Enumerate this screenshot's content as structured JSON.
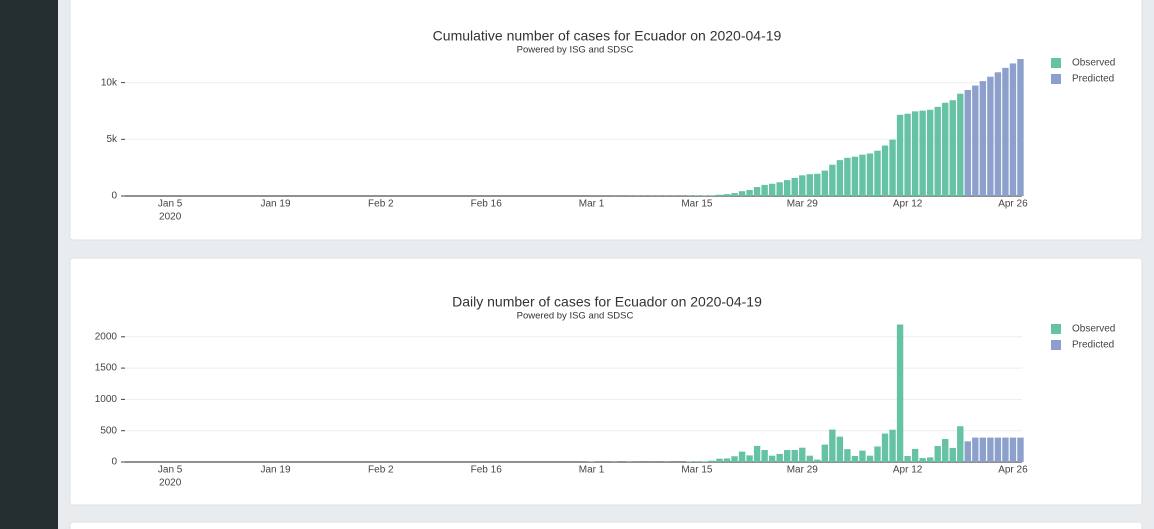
{
  "chart_data": [
    {
      "type": "bar",
      "title": "Cumulative number of cases for Ecuador on 2020-04-19",
      "subtitle": "Powered by ISG and SDSC",
      "x": [
        "2020-02-29",
        "2020-03-01",
        "2020-03-02",
        "2020-03-03",
        "2020-03-04",
        "2020-03-05",
        "2020-03-06",
        "2020-03-07",
        "2020-03-08",
        "2020-03-09",
        "2020-03-10",
        "2020-03-11",
        "2020-03-12",
        "2020-03-13",
        "2020-03-14",
        "2020-03-15",
        "2020-03-16",
        "2020-03-17",
        "2020-03-18",
        "2020-03-19",
        "2020-03-20",
        "2020-03-21",
        "2020-03-22",
        "2020-03-23",
        "2020-03-24",
        "2020-03-25",
        "2020-03-26",
        "2020-03-27",
        "2020-03-28",
        "2020-03-29",
        "2020-03-30",
        "2020-03-31",
        "2020-04-01",
        "2020-04-02",
        "2020-04-03",
        "2020-04-04",
        "2020-04-05",
        "2020-04-06",
        "2020-04-07",
        "2020-04-08",
        "2020-04-09",
        "2020-04-10",
        "2020-04-11",
        "2020-04-12",
        "2020-04-13",
        "2020-04-14",
        "2020-04-15",
        "2020-04-16",
        "2020-04-17",
        "2020-04-18",
        "2020-04-19",
        "2020-04-20",
        "2020-04-21",
        "2020-04-22",
        "2020-04-23",
        "2020-04-24",
        "2020-04-25",
        "2020-04-26",
        "2020-04-27"
      ],
      "series": [
        {
          "name": "Observed",
          "color": "#66c2a5",
          "values": [
            1,
            6,
            7,
            7,
            10,
            10,
            13,
            14,
            14,
            15,
            15,
            17,
            17,
            17,
            23,
            28,
            37,
            58,
            111,
            168,
            260,
            426,
            532,
            789,
            981,
            1082,
            1211,
            1403,
            1595,
            1823,
            1924,
            1962,
            2240,
            2758,
            3163,
            3368,
            3465,
            3646,
            3747,
            3995,
            4450,
            4965,
            7161,
            7257,
            7466,
            7529,
            7603,
            7858,
            8225,
            8450,
            9022,
            null,
            null,
            null,
            null,
            null,
            null,
            null,
            null
          ]
        },
        {
          "name": "Predicted",
          "color": "#8da0cb",
          "values": [
            null,
            null,
            null,
            null,
            null,
            null,
            null,
            null,
            null,
            null,
            null,
            null,
            null,
            null,
            null,
            null,
            null,
            null,
            null,
            null,
            null,
            null,
            null,
            null,
            null,
            null,
            null,
            null,
            null,
            null,
            null,
            null,
            null,
            null,
            null,
            null,
            null,
            null,
            null,
            null,
            null,
            null,
            null,
            null,
            null,
            null,
            null,
            null,
            null,
            null,
            null,
            9352,
            9742,
            10132,
            10522,
            10912,
            11302,
            11692,
            12082
          ]
        }
      ],
      "xlim": [
        "2019-12-30",
        "2020-04-28"
      ],
      "xticks": [
        {
          "value": "2020-01-05",
          "label": "Jan 5"
        },
        {
          "value": "2020-01-19",
          "label": "Jan 19"
        },
        {
          "value": "2020-02-02",
          "label": "Feb 2"
        },
        {
          "value": "2020-02-16",
          "label": "Feb 16"
        },
        {
          "value": "2020-03-01",
          "label": "Mar 1"
        },
        {
          "value": "2020-03-15",
          "label": "Mar 15"
        },
        {
          "value": "2020-03-29",
          "label": "Mar 29"
        },
        {
          "value": "2020-04-12",
          "label": "Apr 12"
        },
        {
          "value": "2020-04-26",
          "label": "Apr 26"
        }
      ],
      "x_year_label": "2020",
      "ylim": [
        0,
        12700
      ],
      "yticks": [
        0,
        {
          "value": 5000,
          "label": "5k"
        },
        {
          "value": 10000,
          "label": "10k"
        }
      ],
      "grid": true,
      "legend": "right"
    },
    {
      "type": "bar",
      "title": "Daily number of cases for Ecuador on 2020-04-19",
      "subtitle": "Powered by ISG and SDSC",
      "x": [
        "2020-02-29",
        "2020-03-01",
        "2020-03-02",
        "2020-03-03",
        "2020-03-04",
        "2020-03-05",
        "2020-03-06",
        "2020-03-07",
        "2020-03-08",
        "2020-03-09",
        "2020-03-10",
        "2020-03-11",
        "2020-03-12",
        "2020-03-13",
        "2020-03-14",
        "2020-03-15",
        "2020-03-16",
        "2020-03-17",
        "2020-03-18",
        "2020-03-19",
        "2020-03-20",
        "2020-03-21",
        "2020-03-22",
        "2020-03-23",
        "2020-03-24",
        "2020-03-25",
        "2020-03-26",
        "2020-03-27",
        "2020-03-28",
        "2020-03-29",
        "2020-03-30",
        "2020-03-31",
        "2020-04-01",
        "2020-04-02",
        "2020-04-03",
        "2020-04-04",
        "2020-04-05",
        "2020-04-06",
        "2020-04-07",
        "2020-04-08",
        "2020-04-09",
        "2020-04-10",
        "2020-04-11",
        "2020-04-12",
        "2020-04-13",
        "2020-04-14",
        "2020-04-15",
        "2020-04-16",
        "2020-04-17",
        "2020-04-18",
        "2020-04-19",
        "2020-04-20",
        "2020-04-21",
        "2020-04-22",
        "2020-04-23",
        "2020-04-24",
        "2020-04-25",
        "2020-04-26",
        "2020-04-27"
      ],
      "series": [
        {
          "name": "Observed",
          "color": "#66c2a5",
          "values": [
            1,
            5,
            1,
            0,
            3,
            0,
            3,
            1,
            0,
            1,
            0,
            2,
            0,
            0,
            6,
            5,
            9,
            21,
            53,
            57,
            92,
            166,
            106,
            257,
            192,
            101,
            129,
            192,
            192,
            228,
            101,
            38,
            278,
            518,
            405,
            205,
            97,
            181,
            101,
            248,
            455,
            515,
            2196,
            96,
            209,
            63,
            74,
            255,
            367,
            225,
            572,
            null,
            null,
            null,
            null,
            null,
            null,
            null,
            null
          ]
        },
        {
          "name": "Predicted",
          "color": "#8da0cb",
          "values": [
            null,
            null,
            null,
            null,
            null,
            null,
            null,
            null,
            null,
            null,
            null,
            null,
            null,
            null,
            null,
            null,
            null,
            null,
            null,
            null,
            null,
            null,
            null,
            null,
            null,
            null,
            null,
            null,
            null,
            null,
            null,
            null,
            null,
            null,
            null,
            null,
            null,
            null,
            null,
            null,
            null,
            null,
            null,
            null,
            null,
            null,
            null,
            null,
            null,
            null,
            null,
            330,
            390,
            390,
            390,
            390,
            390,
            390,
            390
          ]
        }
      ],
      "xlim": [
        "2019-12-30",
        "2020-04-28"
      ],
      "xticks": [
        {
          "value": "2020-01-05",
          "label": "Jan 5"
        },
        {
          "value": "2020-01-19",
          "label": "Jan 19"
        },
        {
          "value": "2020-02-02",
          "label": "Feb 2"
        },
        {
          "value": "2020-02-16",
          "label": "Feb 16"
        },
        {
          "value": "2020-03-01",
          "label": "Mar 1"
        },
        {
          "value": "2020-03-15",
          "label": "Mar 15"
        },
        {
          "value": "2020-03-29",
          "label": "Mar 29"
        },
        {
          "value": "2020-04-12",
          "label": "Apr 12"
        },
        {
          "value": "2020-04-26",
          "label": "Apr 26"
        }
      ],
      "x_year_label": "2020",
      "ylim": [
        0,
        2300
      ],
      "yticks": [
        0,
        500,
        1000,
        1500,
        2000
      ],
      "grid": true,
      "legend": "right"
    }
  ]
}
